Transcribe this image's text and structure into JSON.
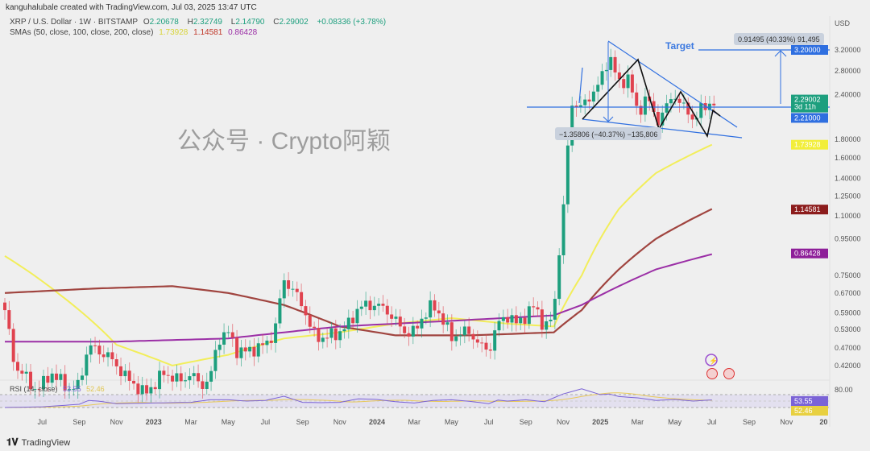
{
  "header": {
    "credit": "kanguhalubale created with TradingView.com, Jul 03, 2025 13:47 UTC"
  },
  "legend": {
    "symbol": "XRP / U.S. Dollar · 1W · BITSTAMP",
    "o_label": "O",
    "o": "2.20678",
    "h_label": "H",
    "h": "2.32749",
    "l_label": "L",
    "l": "2.14790",
    "c_label": "C",
    "c": "2.29002",
    "change": "+0.08336 (+3.78%)",
    "sma_label": "SMAs (50, close, 100, close, 200, close)",
    "sma50": "1.73928",
    "sma100": "1.14581",
    "sma200": "0.86428"
  },
  "rsi": {
    "label": "RSI (14, close)",
    "value": "53.55",
    "sma": "52.46",
    "level": "80.00"
  },
  "annotations": {
    "target": "Target",
    "up_measure": "0.91495 (40.33%) 91,495",
    "down_measure": "−1.35806 (−40.37%) −135,806"
  },
  "price_tags": {
    "target": "3.20000",
    "close": "2.29002",
    "countdown": "3d 11h",
    "support": "2.21000",
    "sma50": "1.73928",
    "sma100": "1.14581",
    "sma200": "0.86428",
    "rsi": "53.55",
    "rsi_sma": "52.46"
  },
  "footer": {
    "brand": "TradingView",
    "watermark": "公众号 · Crypto阿颖"
  },
  "colors": {
    "up": "#1d9f7e",
    "down": "#e0434f",
    "sma50": "#f2ee5a",
    "sma100": "#a0443f",
    "sma200": "#9b2fa6",
    "line": "#2f6fe0",
    "rsi": "#7b63d6",
    "rsi_sma": "#e8c95a"
  },
  "chart_data": {
    "type": "candlestick",
    "title": "XRP / U.S. Dollar · 1W · BITSTAMP",
    "ylabel": "USD",
    "yscale": "log",
    "yticks": [
      "3.20000",
      "2.80000",
      "2.40000",
      "1.80000",
      "1.60000",
      "1.40000",
      "1.25000",
      "1.10000",
      "0.95000",
      "0.75000",
      "0.67000",
      "0.59000",
      "0.53000",
      "0.47000",
      "0.42000"
    ],
    "xticks": [
      "Jul",
      "Sep",
      "Nov",
      "2023",
      "Mar",
      "May",
      "Jul",
      "Sep",
      "Nov",
      "2024",
      "Mar",
      "May",
      "Jul",
      "Sep",
      "Nov",
      "2025",
      "Mar",
      "May",
      "Jul",
      "Sep",
      "Nov",
      "20"
    ],
    "x_unit": "months since May 2022",
    "close_anchors": [
      [
        0,
        0.6
      ],
      [
        0.5,
        0.42
      ],
      [
        1,
        0.4
      ],
      [
        1.5,
        0.36
      ],
      [
        2,
        0.37
      ],
      [
        2.5,
        0.4
      ],
      [
        3,
        0.38
      ],
      [
        3.5,
        0.36
      ],
      [
        4,
        0.37
      ],
      [
        4.5,
        0.48
      ],
      [
        5,
        0.46
      ],
      [
        5.5,
        0.45
      ],
      [
        6,
        0.42
      ],
      [
        6.5,
        0.39
      ],
      [
        7,
        0.37
      ],
      [
        7.5,
        0.35
      ],
      [
        8,
        0.37
      ],
      [
        8.5,
        0.4
      ],
      [
        9,
        0.39
      ],
      [
        9.5,
        0.38
      ],
      [
        10,
        0.4
      ],
      [
        10.5,
        0.37
      ],
      [
        11,
        0.38
      ],
      [
        11.5,
        0.5
      ],
      [
        12,
        0.52
      ],
      [
        12.5,
        0.46
      ],
      [
        13,
        0.46
      ],
      [
        13.5,
        0.47
      ],
      [
        14,
        0.48
      ],
      [
        14.5,
        0.52
      ],
      [
        15,
        0.73
      ],
      [
        15.5,
        0.68
      ],
      [
        16,
        0.62
      ],
      [
        16.5,
        0.52
      ],
      [
        17,
        0.5
      ],
      [
        17.5,
        0.51
      ],
      [
        18,
        0.52
      ],
      [
        18.5,
        0.55
      ],
      [
        19,
        0.61
      ],
      [
        19.5,
        0.62
      ],
      [
        20,
        0.62
      ],
      [
        20.5,
        0.6
      ],
      [
        21,
        0.56
      ],
      [
        21.5,
        0.52
      ],
      [
        22,
        0.52
      ],
      [
        22.5,
        0.58
      ],
      [
        23,
        0.62
      ],
      [
        23.5,
        0.57
      ],
      [
        24,
        0.5
      ],
      [
        24.5,
        0.52
      ],
      [
        25,
        0.52
      ],
      [
        25.5,
        0.48
      ],
      [
        26,
        0.46
      ],
      [
        26.5,
        0.55
      ],
      [
        27,
        0.58
      ],
      [
        27.5,
        0.55
      ],
      [
        28,
        0.58
      ],
      [
        28.5,
        0.62
      ],
      [
        29,
        0.53
      ],
      [
        29.5,
        0.58
      ],
      [
        30,
        1.1
      ],
      [
        30.5,
        2.3
      ],
      [
        31,
        2.2
      ],
      [
        31.5,
        2.4
      ],
      [
        32,
        2.6
      ],
      [
        32.5,
        3.1
      ],
      [
        33,
        2.55
      ],
      [
        33.5,
        2.7
      ],
      [
        34,
        2.1
      ],
      [
        34.5,
        2.4
      ],
      [
        35,
        2.0
      ],
      [
        35.5,
        2.2
      ],
      [
        36,
        2.4
      ],
      [
        36.5,
        2.2
      ],
      [
        37,
        2.05
      ],
      [
        37.5,
        2.2
      ],
      [
        38,
        2.29
      ]
    ],
    "sma50": [
      [
        0,
        0.85
      ],
      [
        3,
        0.66
      ],
      [
        6,
        0.48
      ],
      [
        9,
        0.42
      ],
      [
        12,
        0.45
      ],
      [
        15,
        0.5
      ],
      [
        18,
        0.52
      ],
      [
        21,
        0.55
      ],
      [
        24,
        0.57
      ],
      [
        27,
        0.55
      ],
      [
        29.5,
        0.54
      ],
      [
        31,
        0.75
      ],
      [
        33,
        1.15
      ],
      [
        35,
        1.45
      ],
      [
        38,
        1.74
      ]
    ],
    "sma100": [
      [
        0,
        0.67
      ],
      [
        5,
        0.69
      ],
      [
        9,
        0.7
      ],
      [
        12,
        0.67
      ],
      [
        15,
        0.62
      ],
      [
        18,
        0.54
      ],
      [
        21,
        0.51
      ],
      [
        25,
        0.51
      ],
      [
        29.5,
        0.52
      ],
      [
        31,
        0.6
      ],
      [
        33,
        0.78
      ],
      [
        35,
        0.95
      ],
      [
        38,
        1.15
      ]
    ],
    "sma200": [
      [
        0,
        0.49
      ],
      [
        6,
        0.49
      ],
      [
        12,
        0.5
      ],
      [
        18,
        0.54
      ],
      [
        24,
        0.56
      ],
      [
        29.5,
        0.58
      ],
      [
        31,
        0.62
      ],
      [
        33,
        0.7
      ],
      [
        35,
        0.78
      ],
      [
        38,
        0.86
      ]
    ],
    "rsi": [
      [
        0,
        30
      ],
      [
        2,
        32
      ],
      [
        4,
        40
      ],
      [
        4.5,
        52
      ],
      [
        5,
        50
      ],
      [
        6,
        42
      ],
      [
        8,
        44
      ],
      [
        10,
        46
      ],
      [
        11,
        54
      ],
      [
        12,
        54
      ],
      [
        13,
        50
      ],
      [
        14,
        52
      ],
      [
        15,
        65
      ],
      [
        16,
        46
      ],
      [
        17,
        45
      ],
      [
        18,
        46
      ],
      [
        19,
        57
      ],
      [
        20,
        55
      ],
      [
        21,
        48
      ],
      [
        22,
        44
      ],
      [
        23,
        52
      ],
      [
        24,
        54
      ],
      [
        25,
        49
      ],
      [
        26,
        42
      ],
      [
        26.5,
        53
      ],
      [
        27,
        50
      ],
      [
        28,
        54
      ],
      [
        29,
        48
      ],
      [
        30,
        72
      ],
      [
        31,
        88
      ],
      [
        32,
        70
      ],
      [
        32.5,
        72
      ],
      [
        33,
        64
      ],
      [
        34,
        60
      ],
      [
        35,
        52
      ],
      [
        36,
        55
      ],
      [
        37,
        50
      ],
      [
        38,
        53.55
      ]
    ],
    "rsi_ylim": [
      0,
      100
    ]
  }
}
